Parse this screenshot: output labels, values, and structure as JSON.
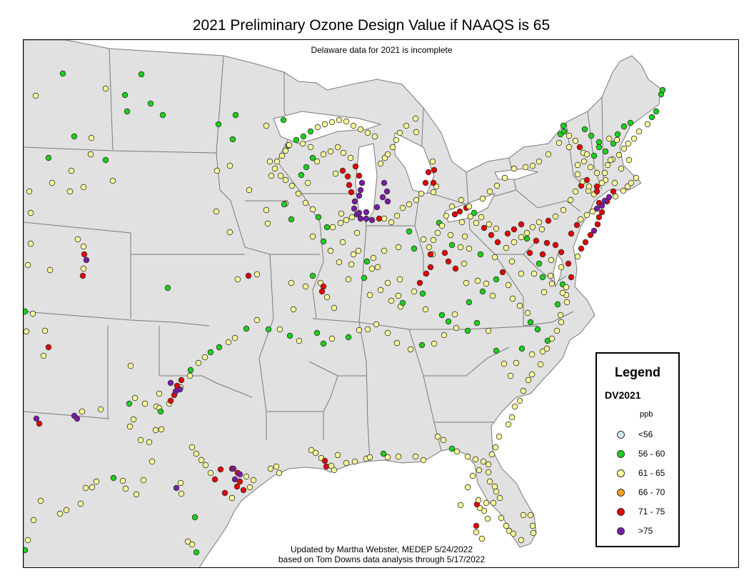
{
  "title": "2021 Preliminary Ozone Design Value if NAAQS is 65",
  "note": "Delaware data for 2021 is incomplete",
  "credit_line1": "Updated by Martha Webster, MEDEP 5/24/2022",
  "credit_line2": "based on Tom Downs data analysis through 5/17/2022",
  "legend": {
    "title": "Legend",
    "subtitle": "DV2021",
    "unit": "ppb",
    "classes": [
      {
        "label": "<56",
        "color": "#cfe7f5"
      },
      {
        "label": "56 - 60",
        "color": "#19d219"
      },
      {
        "label": "61 - 65",
        "color": "#ffff99"
      },
      {
        "label": "66 - 70",
        "color": "#ff9f1a"
      },
      {
        "label": "71 - 75",
        "color": "#e60000"
      },
      {
        "label": ">75",
        "color": "#7a1aa6"
      }
    ]
  },
  "map": {
    "land_color": "#e1e1e1",
    "border_color": "#7a7a7a"
  }
}
